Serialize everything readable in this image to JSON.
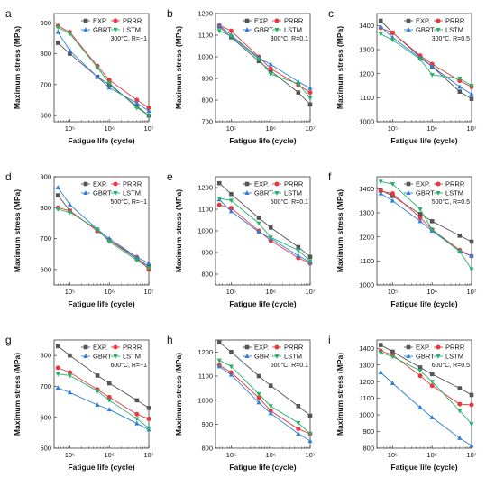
{
  "series_styles": {
    "EXP.": {
      "color": "#555555",
      "marker": "square"
    },
    "PRRR": {
      "color": "#e8383d",
      "marker": "circle"
    },
    "GBRT": {
      "color": "#2f7fd6",
      "marker": "triangle-up"
    },
    "LSTM": {
      "color": "#27b26b",
      "marker": "triangle-down"
    }
  },
  "chart_data": [
    {
      "id": "a",
      "type": "line",
      "xscale": "log",
      "xlim": [
        40000,
        10000000
      ],
      "xticks": [
        100000,
        1000000,
        10000000
      ],
      "xtick_labels": [
        "10⁵",
        "10⁶",
        "10⁷"
      ],
      "xlabel": "Fatigue life (cycle)",
      "ylabel": "Maximum stress (MPa)",
      "ylim": [
        580,
        930
      ],
      "yticks": [
        600,
        700,
        800,
        900
      ],
      "condition": "300°C, R=−1",
      "legend": "top-right",
      "x": [
        50000,
        100000,
        500000,
        1000000,
        5000000,
        10000000
      ],
      "series": [
        {
          "name": "EXP.",
          "values": [
            835,
            800,
            725,
            700,
            630,
            600
          ]
        },
        {
          "name": "PRRR",
          "values": [
            890,
            870,
            760,
            715,
            650,
            625
          ]
        },
        {
          "name": "GBRT",
          "values": [
            870,
            810,
            725,
            690,
            640,
            615
          ]
        },
        {
          "name": "LSTM",
          "values": [
            885,
            865,
            755,
            705,
            625,
            600
          ]
        }
      ]
    },
    {
      "id": "b",
      "type": "line",
      "xscale": "log",
      "xlim": [
        40000,
        10000000
      ],
      "xticks": [
        100000,
        1000000,
        10000000
      ],
      "xtick_labels": [
        "10⁵",
        "10⁶",
        "10⁷"
      ],
      "xlabel": "Fatigue life (cycle)",
      "ylabel": "Maximum stress (MPa)",
      "ylim": [
        700,
        1200
      ],
      "yticks": [
        700,
        800,
        900,
        1000,
        1100,
        1200
      ],
      "condition": "300°C, R=0.1",
      "legend": "top-right",
      "x": [
        50000,
        100000,
        500000,
        1000000,
        5000000,
        10000000
      ],
      "series": [
        {
          "name": "EXP.",
          "values": [
            1140,
            1090,
            980,
            935,
            835,
            780
          ]
        },
        {
          "name": "PRRR",
          "values": [
            1145,
            1120,
            1000,
            945,
            870,
            835
          ]
        },
        {
          "name": "GBRT",
          "values": [
            1145,
            1100,
            995,
            965,
            885,
            855
          ]
        },
        {
          "name": "LSTM",
          "values": [
            1120,
            1095,
            990,
            920,
            875,
            810
          ]
        }
      ]
    },
    {
      "id": "c",
      "type": "line",
      "xscale": "log",
      "xlim": [
        40000,
        10000000
      ],
      "xticks": [
        100000,
        1000000,
        10000000
      ],
      "xtick_labels": [
        "10⁵",
        "10⁶",
        "10⁷"
      ],
      "xlabel": "Fatigue life (cycle)",
      "ylabel": "Maximum stress (MPa)",
      "ylim": [
        1000,
        1450
      ],
      "yticks": [
        1000,
        1100,
        1200,
        1300,
        1400
      ],
      "condition": "300°C, R=0.5",
      "legend": "top-right",
      "x": [
        50000,
        100000,
        500000,
        1000000,
        5000000,
        10000000
      ],
      "series": [
        {
          "name": "EXP.",
          "values": [
            1420,
            1370,
            1270,
            1230,
            1125,
            1095
          ]
        },
        {
          "name": "PRRR",
          "values": [
            1390,
            1370,
            1275,
            1240,
            1170,
            1145
          ]
        },
        {
          "name": "GBRT",
          "values": [
            1395,
            1350,
            1265,
            1230,
            1145,
            1115
          ]
        },
        {
          "name": "LSTM",
          "values": [
            1365,
            1340,
            1260,
            1195,
            1180,
            1150
          ]
        }
      ]
    },
    {
      "id": "d",
      "type": "line",
      "xscale": "log",
      "xlim": [
        40000,
        10000000
      ],
      "xticks": [
        100000,
        1000000,
        10000000
      ],
      "xtick_labels": [
        "10⁵",
        "10⁶",
        "10⁷"
      ],
      "xlabel": "Fatigue life (cycle)",
      "ylabel": "Maximum stress (MPa)",
      "ylim": [
        550,
        900
      ],
      "yticks": [
        600,
        700,
        800,
        900
      ],
      "condition": "500°C, R=−1",
      "legend": "top-right",
      "x": [
        50000,
        100000,
        500000,
        1000000,
        5000000,
        10000000
      ],
      "series": [
        {
          "name": "EXP.",
          "values": [
            840,
            790,
            725,
            695,
            635,
            610
          ]
        },
        {
          "name": "PRRR",
          "values": [
            800,
            790,
            725,
            695,
            640,
            600
          ]
        },
        {
          "name": "GBRT",
          "values": [
            865,
            810,
            730,
            700,
            640,
            620
          ]
        },
        {
          "name": "LSTM",
          "values": [
            795,
            785,
            730,
            690,
            630,
            605
          ]
        }
      ]
    },
    {
      "id": "e",
      "type": "line",
      "xscale": "log",
      "xlim": [
        40000,
        10000000
      ],
      "xticks": [
        100000,
        1000000,
        10000000
      ],
      "xtick_labels": [
        "10⁵",
        "10⁶",
        "10⁷"
      ],
      "xlabel": "Fatigue life (cycle)",
      "ylabel": "Maximum stress (MPa)",
      "ylim": [
        750,
        1250
      ],
      "yticks": [
        800,
        900,
        1000,
        1100,
        1200
      ],
      "condition": "500°C, R=0.1",
      "legend": "top-right",
      "x": [
        50000,
        100000,
        500000,
        1000000,
        5000000,
        10000000
      ],
      "series": [
        {
          "name": "EXP.",
          "values": [
            1220,
            1170,
            1060,
            1015,
            925,
            880
          ]
        },
        {
          "name": "PRRR",
          "values": [
            1120,
            1105,
            1000,
            955,
            875,
            850
          ]
        },
        {
          "name": "GBRT",
          "values": [
            1145,
            1090,
            995,
            965,
            885,
            855
          ]
        },
        {
          "name": "LSTM",
          "values": [
            1150,
            1140,
            1035,
            970,
            910,
            860
          ]
        }
      ]
    },
    {
      "id": "f",
      "type": "line",
      "xscale": "log",
      "xlim": [
        40000,
        10000000
      ],
      "xticks": [
        100000,
        1000000,
        10000000
      ],
      "xtick_labels": [
        "10⁵",
        "10⁶",
        "10⁷"
      ],
      "xlabel": "Fatigue life (cycle)",
      "ylabel": "Maximum stress (MPa)",
      "ylim": [
        1000,
        1450
      ],
      "yticks": [
        1000,
        1100,
        1200,
        1300,
        1400
      ],
      "condition": "500°C, R=0.5",
      "legend": "top-right",
      "x": [
        50000,
        100000,
        500000,
        1000000,
        5000000,
        10000000
      ],
      "series": [
        {
          "name": "EXP.",
          "values": [
            1395,
            1370,
            1295,
            1265,
            1205,
            1180
          ]
        },
        {
          "name": "PRRR",
          "values": [
            1390,
            1380,
            1280,
            1230,
            1145,
            1120
          ]
        },
        {
          "name": "GBRT",
          "values": [
            1380,
            1350,
            1265,
            1225,
            1140,
            1120
          ]
        },
        {
          "name": "LSTM",
          "values": [
            1430,
            1420,
            1315,
            1230,
            1140,
            1065
          ]
        }
      ]
    },
    {
      "id": "g",
      "type": "line",
      "xscale": "log",
      "xlim": [
        40000,
        10000000
      ],
      "xticks": [
        100000,
        1000000,
        10000000
      ],
      "xtick_labels": [
        "10⁵",
        "10⁶",
        "10⁷"
      ],
      "xlabel": "Fatigue life (cycle)",
      "ylabel": "Maximum stress (MPa)",
      "ylim": [
        500,
        850
      ],
      "yticks": [
        500,
        600,
        700,
        800
      ],
      "condition": "600°C, R=−1",
      "legend": "top-right",
      "x": [
        50000,
        100000,
        500000,
        1000000,
        5000000,
        10000000
      ],
      "series": [
        {
          "name": "EXP.",
          "values": [
            830,
            800,
            735,
            710,
            655,
            630
          ]
        },
        {
          "name": "PRRR",
          "values": [
            760,
            745,
            690,
            665,
            610,
            595
          ]
        },
        {
          "name": "GBRT",
          "values": [
            695,
            680,
            640,
            625,
            580,
            560
          ]
        },
        {
          "name": "LSTM",
          "values": [
            740,
            735,
            685,
            655,
            595,
            565
          ]
        }
      ]
    },
    {
      "id": "h",
      "type": "line",
      "xscale": "log",
      "xlim": [
        40000,
        10000000
      ],
      "xticks": [
        100000,
        1000000,
        10000000
      ],
      "xtick_labels": [
        "10⁵",
        "10⁶",
        "10⁷"
      ],
      "xlabel": "Fatigue life (cycle)",
      "ylabel": "Maximum stress (MPa)",
      "ylim": [
        800,
        1250
      ],
      "yticks": [
        800,
        900,
        1000,
        1100,
        1200
      ],
      "condition": "600°C, R=0.1",
      "legend": "top-right",
      "x": [
        50000,
        100000,
        500000,
        1000000,
        5000000,
        10000000
      ],
      "series": [
        {
          "name": "EXP.",
          "values": [
            1240,
            1200,
            1100,
            1060,
            975,
            935
          ]
        },
        {
          "name": "PRRR",
          "values": [
            1145,
            1115,
            1010,
            955,
            880,
            860
          ]
        },
        {
          "name": "GBRT",
          "values": [
            1140,
            1105,
            990,
            945,
            860,
            830
          ]
        },
        {
          "name": "LSTM",
          "values": [
            1165,
            1140,
            1025,
            975,
            905,
            860
          ]
        }
      ]
    },
    {
      "id": "i",
      "type": "line",
      "xscale": "log",
      "xlim": [
        40000,
        10000000
      ],
      "xticks": [
        100000,
        1000000,
        10000000
      ],
      "xtick_labels": [
        "10⁵",
        "10⁶",
        "10⁷"
      ],
      "xlabel": "Fatigue life (cycle)",
      "ylabel": "Maximum stress (MPa)",
      "ylim": [
        800,
        1450
      ],
      "yticks": [
        800,
        900,
        1000,
        1100,
        1200,
        1300,
        1400
      ],
      "condition": "600°C, R=0.5",
      "legend": "top-right",
      "x": [
        50000,
        100000,
        500000,
        1000000,
        5000000,
        10000000
      ],
      "series": [
        {
          "name": "EXP.",
          "values": [
            1420,
            1380,
            1285,
            1245,
            1160,
            1120
          ]
        },
        {
          "name": "PRRR",
          "values": [
            1385,
            1360,
            1235,
            1175,
            1065,
            1060
          ]
        },
        {
          "name": "GBRT",
          "values": [
            1255,
            1190,
            1045,
            985,
            860,
            815
          ]
        },
        {
          "name": "LSTM",
          "values": [
            1375,
            1350,
            1265,
            1200,
            1025,
            945
          ]
        }
      ]
    }
  ]
}
